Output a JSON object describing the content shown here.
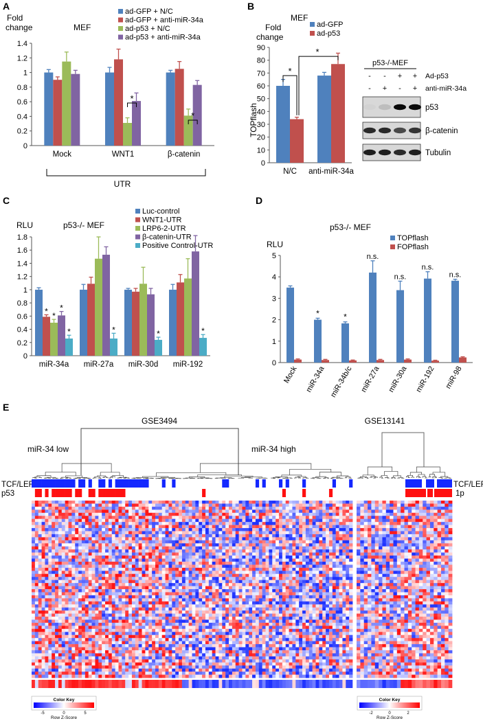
{
  "colors": {
    "blue": "#4f81bd",
    "red": "#c0504d",
    "green": "#9bbb59",
    "purple": "#8064a2",
    "cyan": "#4bacc6",
    "heat_low": "#1a3cff",
    "heat_high": "#ff1a1a"
  },
  "chart_data": [
    {
      "panel": "A",
      "type": "bar",
      "ylabel": "Fold change",
      "title": "MEF",
      "ylim": [
        0,
        1.4
      ],
      "yticks": [
        0,
        0.2,
        0.4,
        0.6,
        0.8,
        1,
        1.2,
        1.4
      ],
      "categories": [
        "Mock",
        "WNT1",
        "β-catenin"
      ],
      "bracket_label": "UTR",
      "series": [
        {
          "name": "ad-GFP + N/C",
          "values": [
            1.0,
            1.0,
            1.0
          ],
          "errors": [
            0.04,
            0.07,
            0.03
          ]
        },
        {
          "name": "ad-GFP + anti-miR-34a",
          "values": [
            0.9,
            1.18,
            1.05
          ],
          "errors": [
            0.04,
            0.14,
            0.1
          ]
        },
        {
          "name": "ad-p53 + N/C",
          "values": [
            1.15,
            0.31,
            0.41
          ],
          "errors": [
            0.13,
            0.07,
            0.09
          ]
        },
        {
          "name": "ad-p53 + anti-miR-34a",
          "values": [
            0.98,
            0.61,
            0.83
          ],
          "errors": [
            0.05,
            0.11,
            0.06
          ]
        }
      ],
      "significance": [
        {
          "category": "WNT1",
          "label": "*"
        },
        {
          "category": "β-catenin",
          "label": "*"
        }
      ]
    },
    {
      "panel": "B",
      "type": "bar",
      "ylabel": "TOPflash",
      "title": "MEF",
      "title2": "Fold change",
      "ylim": [
        0,
        90
      ],
      "yticks": [
        0,
        10,
        20,
        30,
        40,
        50,
        60,
        70,
        80,
        90
      ],
      "categories": [
        "N/C",
        "anti-miR-34a"
      ],
      "series": [
        {
          "name": "ad-GFP",
          "values": [
            60,
            68
          ],
          "errors": [
            5,
            2.5
          ]
        },
        {
          "name": "ad-p53",
          "values": [
            34,
            77
          ],
          "errors": [
            1.5,
            8.5
          ]
        }
      ],
      "significance": [
        {
          "label": "*"
        },
        {
          "label": "*"
        }
      ]
    },
    {
      "panel": "C",
      "type": "bar",
      "ylabel": "RLU",
      "title": "p53-/- MEF",
      "ylim": [
        0,
        1.8
      ],
      "yticks": [
        0,
        0.2,
        0.4,
        0.6,
        0.8,
        1,
        1.2,
        1.4,
        1.6,
        1.8
      ],
      "categories": [
        "miR-34a",
        "miR-27a",
        "miR-30d",
        "miR-192"
      ],
      "series": [
        {
          "name": "Luc-control",
          "values": [
            1.0,
            1.0,
            1.0,
            1.0
          ],
          "errors": [
            0.03,
            0.08,
            0.02,
            0.08
          ]
        },
        {
          "name": "WNT1-UTR",
          "values": [
            0.59,
            1.09,
            0.97,
            1.11
          ],
          "errors": [
            0.03,
            0.1,
            0.05,
            0.12
          ]
        },
        {
          "name": "LRP6-2-UTR",
          "values": [
            0.5,
            1.47,
            1.09,
            1.17
          ],
          "errors": [
            0.05,
            0.33,
            0.25,
            0.3
          ]
        },
        {
          "name": "β-catenin-UTR",
          "values": [
            0.61,
            1.53,
            0.93,
            1.58
          ],
          "errors": [
            0.06,
            0.12,
            0.09,
            0.24
          ]
        },
        {
          "name": "Positive Control-UTR",
          "values": [
            0.26,
            0.26,
            0.24,
            0.27
          ],
          "errors": [
            0.05,
            0.08,
            0.04,
            0.05
          ]
        }
      ],
      "significance_label": "*"
    },
    {
      "panel": "D",
      "type": "bar",
      "ylabel": "RLU",
      "title": "p53-/- MEF",
      "ylim": [
        0,
        5
      ],
      "yticks": [
        0,
        1,
        2,
        3,
        4,
        5
      ],
      "categories": [
        "Mock",
        "miR-34a",
        "miR-34b/c",
        "miR-27a",
        "miR-30a",
        "miR-192",
        "miR-98"
      ],
      "series": [
        {
          "name": "TOPflash",
          "values": [
            3.5,
            2.0,
            1.83,
            4.2,
            3.38,
            3.92,
            3.82
          ],
          "errors": [
            0.08,
            0.07,
            0.07,
            0.55,
            0.42,
            0.32,
            0.07
          ]
        },
        {
          "name": "FOPflash",
          "values": [
            0.14,
            0.12,
            0.1,
            0.12,
            0.14,
            0.09,
            0.24
          ],
          "errors": [
            0.03,
            0.03,
            0.02,
            0.03,
            0.03,
            0.02,
            0.03
          ]
        }
      ],
      "annotations": [
        "",
        "*",
        "*",
        "n.s.",
        "n.s.",
        "n.s.",
        "n.s."
      ]
    },
    {
      "panel": "E",
      "type": "heatmap",
      "left": {
        "title": "GSE3494",
        "group_low": "miR-34 low",
        "group_high": "miR-34 high",
        "row_labels": [
          "TCF/LEF",
          "p53"
        ]
      },
      "right": {
        "title": "GSE13141",
        "row_labels": [
          "TCF/LEF",
          "1p"
        ]
      },
      "color_key_title": "Color Key",
      "color_key_xlabel": "Row Z-Score",
      "left_key_ticks": [
        "-5",
        "0",
        "5"
      ],
      "right_key_ticks": [
        "-2",
        "0",
        "2"
      ]
    }
  ],
  "panels": {
    "A": {
      "label": "A"
    },
    "B": {
      "label": "B"
    },
    "C": {
      "label": "C"
    },
    "D": {
      "label": "D"
    },
    "E": {
      "label": "E"
    }
  },
  "blot": {
    "title": "p53-/-MEF",
    "row_labels": [
      "Ad-p53",
      "anti-miR-34a"
    ],
    "row_values": [
      [
        "-",
        "-",
        "+",
        "+"
      ],
      [
        "-",
        "+",
        "-",
        "+"
      ]
    ],
    "band_labels": [
      "p53",
      "β-catenin",
      "Tubulin"
    ]
  }
}
